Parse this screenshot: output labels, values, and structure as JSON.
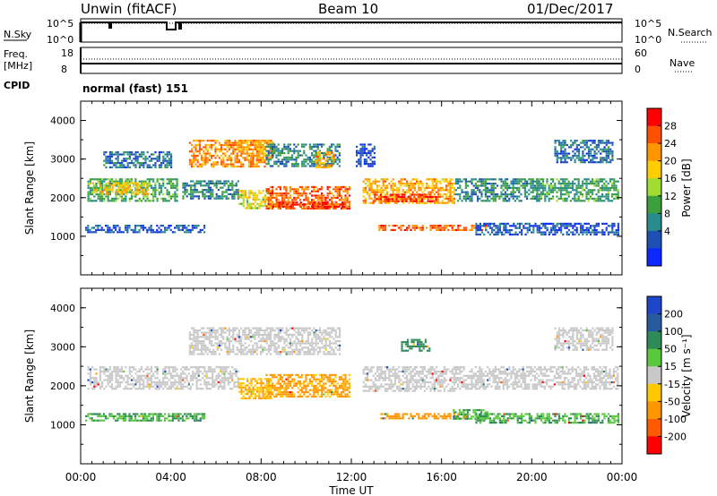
{
  "header": {
    "station": "Unwin (fitACF)",
    "beam": "Beam 10",
    "date": "01/Dec/2017"
  },
  "noise_panel": {
    "left_label": "N.Sky",
    "right_label": "N.Search",
    "left_ticks": [
      "10^5",
      "10^0"
    ],
    "right_ticks": [
      "10^5",
      "10^0"
    ]
  },
  "freq_panel": {
    "left_label_1": "Freq.",
    "left_label_2": "[MHz]",
    "right_label": "Nave",
    "left_ticks": [
      "18",
      "8"
    ],
    "right_ticks": [
      "60",
      "0"
    ]
  },
  "cpid": {
    "label": "CPID",
    "value": "normal (fast) 151"
  },
  "chart_data": [
    {
      "type": "heatmap",
      "panel": "power",
      "ylabel": "Slant Range [km]",
      "ylim": [
        0,
        4500
      ],
      "yticks": [
        "1000",
        "2000",
        "3000",
        "4000"
      ],
      "xlim": [
        0,
        24
      ],
      "colorbar_label": "Power [dB]",
      "colorbar_ticks": [
        "28",
        "24",
        "20",
        "16",
        "12",
        "8",
        "4"
      ],
      "colorbar_colors": [
        "#ff0000",
        "#ff5000",
        "#ff9600",
        "#ffcd00",
        "#a0dc32",
        "#3ca03c",
        "#288c8c",
        "#1e50b4",
        "#0a28ff"
      ],
      "regions": [
        {
          "t": [
            4.8,
            8.2
          ],
          "r": [
            2800,
            3500
          ],
          "level": 24
        },
        {
          "t": [
            7.0,
            8.5
          ],
          "r": [
            3000,
            3500
          ],
          "level": 22
        },
        {
          "t": [
            8.2,
            11.5
          ],
          "r": [
            2800,
            3400
          ],
          "level": 10
        },
        {
          "t": [
            10.4,
            11.2
          ],
          "r": [
            2800,
            3200
          ],
          "level": 22
        },
        {
          "t": [
            0.3,
            4.3
          ],
          "r": [
            1900,
            2500
          ],
          "level": 12
        },
        {
          "t": [
            0.5,
            3.0
          ],
          "r": [
            2100,
            2400
          ],
          "level": 20
        },
        {
          "t": [
            4.5,
            7.0
          ],
          "r": [
            1950,
            2450
          ],
          "level": 10
        },
        {
          "t": [
            7.0,
            8.4
          ],
          "r": [
            1700,
            2200
          ],
          "level": 18
        },
        {
          "t": [
            8.2,
            11.9
          ],
          "r": [
            1700,
            2300
          ],
          "level": 26
        },
        {
          "t": [
            8.5,
            11.8
          ],
          "r": [
            1750,
            1900
          ],
          "level": 28
        },
        {
          "t": [
            12.5,
            16.6
          ],
          "r": [
            1850,
            2500
          ],
          "level": 22
        },
        {
          "t": [
            13.0,
            16.0
          ],
          "r": [
            1900,
            2100
          ],
          "level": 28
        },
        {
          "t": [
            16.6,
            20.3
          ],
          "r": [
            1900,
            2500
          ],
          "level": 10
        },
        {
          "t": [
            20.2,
            23.8
          ],
          "r": [
            1900,
            2500
          ],
          "level": 12
        },
        {
          "t": [
            0.2,
            5.5
          ],
          "r": [
            1100,
            1300
          ],
          "level": 6
        },
        {
          "t": [
            13.2,
            18.0
          ],
          "r": [
            1150,
            1300
          ],
          "level": 26
        },
        {
          "t": [
            17.5,
            23.8
          ],
          "r": [
            1050,
            1350
          ],
          "level": 6
        },
        {
          "t": [
            1.0,
            4.0
          ],
          "r": [
            2800,
            3200
          ],
          "level": 8
        },
        {
          "t": [
            21.0,
            23.6
          ],
          "r": [
            2900,
            3500
          ],
          "level": 8
        },
        {
          "t": [
            12.2,
            13.0
          ],
          "r": [
            2800,
            3400
          ],
          "level": 5
        }
      ]
    },
    {
      "type": "heatmap",
      "panel": "velocity",
      "ylabel": "Slant Range [km]",
      "xlabel": "Time UT",
      "ylim": [
        0,
        4500
      ],
      "yticks": [
        "1000",
        "2000",
        "3000",
        "4000"
      ],
      "xlim": [
        0,
        24
      ],
      "xticks": [
        "00:00",
        "04:00",
        "08:00",
        "12:00",
        "16:00",
        "20:00",
        "00:00"
      ],
      "colorbar_label": "Velocity [m s⁻¹]",
      "colorbar_ticks": [
        "200",
        "100",
        "50",
        "15",
        "-15",
        "-50",
        "-100",
        "-200"
      ],
      "colorbar_colors": [
        "#1e46c8",
        "#285aa0",
        "#2e8b57",
        "#5ac83c",
        "#c8c8c8",
        "#ffc800",
        "#ff9600",
        "#ff5a00",
        "#ff0000"
      ],
      "regions": [
        {
          "t": [
            4.8,
            11.5
          ],
          "r": [
            2800,
            3500
          ],
          "v": 0
        },
        {
          "t": [
            0.3,
            7.0
          ],
          "r": [
            1900,
            2500
          ],
          "v": 0
        },
        {
          "t": [
            7.0,
            8.4
          ],
          "r": [
            1700,
            2200
          ],
          "v": -30
        },
        {
          "t": [
            8.2,
            11.9
          ],
          "r": [
            1700,
            2300
          ],
          "v": -40
        },
        {
          "t": [
            12.5,
            16.6
          ],
          "r": [
            1850,
            2500
          ],
          "v": 0
        },
        {
          "t": [
            16.6,
            23.8
          ],
          "r": [
            1900,
            2500
          ],
          "v": 0
        },
        {
          "t": [
            13.2,
            17.2
          ],
          "r": [
            1150,
            1300
          ],
          "v": -60
        },
        {
          "t": [
            16.5,
            18.0
          ],
          "r": [
            1150,
            1400
          ],
          "v": 30
        },
        {
          "t": [
            17.5,
            23.8
          ],
          "r": [
            1050,
            1300
          ],
          "v": 30
        },
        {
          "t": [
            0.2,
            5.5
          ],
          "r": [
            1100,
            1300
          ],
          "v": 30
        },
        {
          "t": [
            14.2,
            15.5
          ],
          "r": [
            2900,
            3200
          ],
          "v": 60
        },
        {
          "t": [
            21.0,
            23.6
          ],
          "r": [
            2900,
            3500
          ],
          "v": 0
        }
      ]
    }
  ]
}
